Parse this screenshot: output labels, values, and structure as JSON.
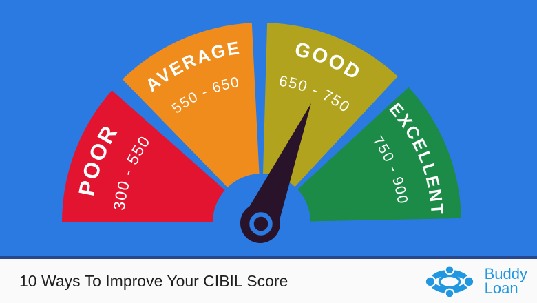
{
  "background_color": "#2b7ae2",
  "chart_data": {
    "type": "gauge",
    "min": 300,
    "max": 900,
    "needle_value": 700,
    "needle_color": "#29132b",
    "label_color": "#ffffff",
    "segments": [
      {
        "label": "POOR",
        "range_text": "300 - 550",
        "range": [
          300,
          550
        ],
        "color": "#e31430",
        "start_angle": 180.0,
        "end_angle": 138.6
      },
      {
        "label": "AVERAGE",
        "range_text": "550 - 650",
        "range": [
          550,
          650
        ],
        "color": "#f08c1c",
        "start_angle": 134.2,
        "end_angle": 92.8
      },
      {
        "label": "GOOD",
        "range_text": "650 - 750",
        "range": [
          650,
          750
        ],
        "color": "#b1a31d",
        "start_angle": 88.4,
        "end_angle": 47.0
      },
      {
        "label": "EXCELLENT",
        "range_text": "750 - 900",
        "range": [
          750,
          900
        ],
        "color": "#1b8b47",
        "start_angle": 42.6,
        "end_angle": 1.2
      }
    ]
  },
  "footer": {
    "title": "10 Ways To Improve Your CIBIL Score",
    "separator_color": "#27488f",
    "background_color": "#fafafa",
    "brand": {
      "line1": "Buddy",
      "line2": "Loan",
      "color": "#2097e0"
    }
  }
}
